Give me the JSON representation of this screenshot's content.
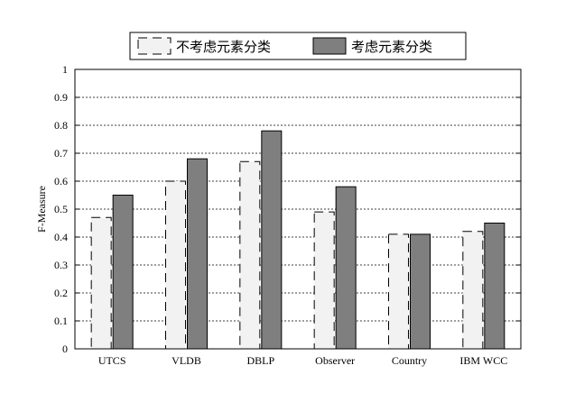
{
  "chart_data": {
    "type": "bar",
    "categories": [
      "UTCS",
      "VLDB",
      "DBLP",
      "Observer",
      "Country",
      "IBM WCC"
    ],
    "series": [
      {
        "name": "不考虑元素分类",
        "values": [
          0.47,
          0.6,
          0.67,
          0.49,
          0.41,
          0.42
        ],
        "color": "#f2f2f2",
        "border": "dashed"
      },
      {
        "name": "考虑元素分类",
        "values": [
          0.55,
          0.68,
          0.78,
          0.58,
          0.41,
          0.45
        ],
        "color": "#7f7f7f",
        "border": "solid"
      }
    ],
    "ylabel": "F-Measure",
    "ylim": [
      0,
      1
    ],
    "yticks": [
      "0",
      "0.1",
      "0.2",
      "0.3",
      "0.4",
      "0.5",
      "0.6",
      "0.7",
      "0.8",
      "0.9",
      "1"
    ],
    "grid": "horizontal-dotted",
    "legend_position": "top-center"
  }
}
